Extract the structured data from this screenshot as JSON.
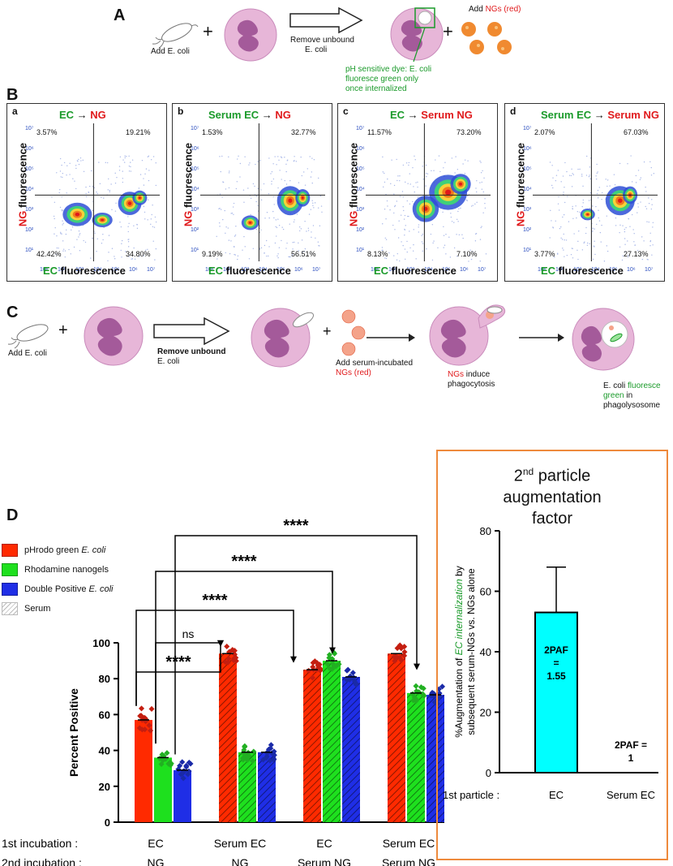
{
  "panels": {
    "A": "A",
    "B": "B",
    "C": "C",
    "D": "D"
  },
  "panelA": {
    "add_ecoli": "Add E. coli",
    "plus": "+",
    "remove_line1": "Remove unbound",
    "remove_line2": "E. coli",
    "dye_line1": "pH sensitive dye: E. coli",
    "dye_line2": "fluoresce green only",
    "dye_line3": "once internalized",
    "add_ngs_prefix": "Add ",
    "add_ngs_red": "NGs (red)",
    "colors": {
      "cell": "#e7b6d8",
      "nucleus": "#a45a9a",
      "dye": "#1a9a2a",
      "ng": "#f08a30"
    }
  },
  "panelB": [
    {
      "sub": "a",
      "title_left": "EC",
      "title_right": "NG",
      "ul": "3.57%",
      "ur": "19.21%",
      "ll": "42.42%",
      "lr": "34.80%"
    },
    {
      "sub": "b",
      "title_left": "Serum EC",
      "title_right": "NG",
      "ul": "1.53%",
      "ur": "32.77%",
      "ll": "9.19%",
      "lr": "56.51%"
    },
    {
      "sub": "c",
      "title_left": "EC",
      "title_right": "Serum NG",
      "ul": "11.57%",
      "ur": "73.20%",
      "ll": "8.13%",
      "lr": "7.10%"
    },
    {
      "sub": "d",
      "title_left": "Serum EC",
      "title_right": "Serum NG",
      "ul": "2.07%",
      "ur": "67.03%",
      "ll": "3.77%",
      "lr": "27.13%"
    }
  ],
  "panelB_axes": {
    "y_ng": "NG",
    "y_rest": " fluorescence",
    "x_ec": "EC",
    "x_rest": " fluorescence",
    "ticks": [
      "10¹",
      "10²",
      "10³",
      "10⁴",
      "10⁵",
      "10⁶",
      "10⁷"
    ]
  },
  "panelC": {
    "add_ecoli": "Add E. coli",
    "plus": "+",
    "remove_line1": "Remove unbound",
    "remove_line2": "E. coli",
    "add_serum_line1": "Add serum-incubated",
    "add_serum_line2": "NGs (red)",
    "induce_ngs": "NGs",
    "induce_rest": " induce",
    "induce_line2": "phagocytosis",
    "fluor_line1a": "E. coli ",
    "fluor_line1b": "fluoresce",
    "fluor_line2": "green",
    "fluor_line2b": " in",
    "fluor_line3": "phagolysosome"
  },
  "legend": [
    {
      "label": "pHrodo green ",
      "ital": "E. coli",
      "color": "#ff2a00"
    },
    {
      "label": "Rhodamine nanogels",
      "ital": "",
      "color": "#1ee01e"
    },
    {
      "label": "Double Positive ",
      "ital": "E. coli",
      "color": "#1f2ee6"
    },
    {
      "label": "Serum",
      "ital": "",
      "color": "hatch"
    }
  ],
  "chart_data": [
    {
      "type": "bar",
      "title": "",
      "ylabel": "Percent Positive",
      "ylim": [
        0,
        100
      ],
      "yticks": [
        0,
        20,
        40,
        60,
        80,
        100
      ],
      "groups": [
        {
          "first": "EC",
          "second": "NG",
          "serum": false
        },
        {
          "first": "Serum EC",
          "second": "NG",
          "serum": true
        },
        {
          "first": "EC",
          "second": "Serum NG",
          "serum": true
        },
        {
          "first": "Serum EC",
          "second": "Serum NG",
          "serum": true
        }
      ],
      "series": [
        {
          "name": "pHrodo green E. coli",
          "color": "#ff2a00",
          "values": [
            57,
            94,
            85,
            94
          ]
        },
        {
          "name": "Rhodamine nanogels",
          "color": "#1ee01e",
          "values": [
            36,
            39,
            90,
            72
          ]
        },
        {
          "name": "Double Positive E. coli",
          "color": "#1f2ee6",
          "values": [
            29,
            39,
            81,
            71
          ]
        }
      ],
      "row1_label": "1st incubation :",
      "row2_label": "2nd incubation :",
      "significance": [
        {
          "label": "****",
          "from": 0,
          "to": 1
        },
        {
          "label": "ns",
          "from": 0,
          "to": 1
        },
        {
          "label": "****",
          "from": 0,
          "to": 2
        },
        {
          "label": "****",
          "from": 0,
          "to": 2
        },
        {
          "label": "****",
          "from": 0,
          "to": 3
        }
      ]
    },
    {
      "type": "bar",
      "title": "2nd particle augmentation factor",
      "title_line1_sup": "nd",
      "title_line1": " particle",
      "title_line2": "augmentation",
      "title_line3": "factor",
      "ylabel_a": "%Augmentation of ",
      "ylabel_b": "EC internalization",
      "ylabel_c": " by",
      "ylabel_line2": "subsequent serum-NGs vs. NGs alone",
      "ylim": [
        0,
        80
      ],
      "yticks": [
        0,
        20,
        40,
        60,
        80
      ],
      "categories": [
        "EC",
        "Serum EC"
      ],
      "values": [
        53,
        0
      ],
      "error": [
        15,
        0
      ],
      "bar_labels": [
        "2PAF = 1.55",
        "2PAF = 1"
      ],
      "xaxis_label": "1st particle :",
      "color": "#00ffff",
      "frame_color": "#ee8a3c"
    }
  ]
}
